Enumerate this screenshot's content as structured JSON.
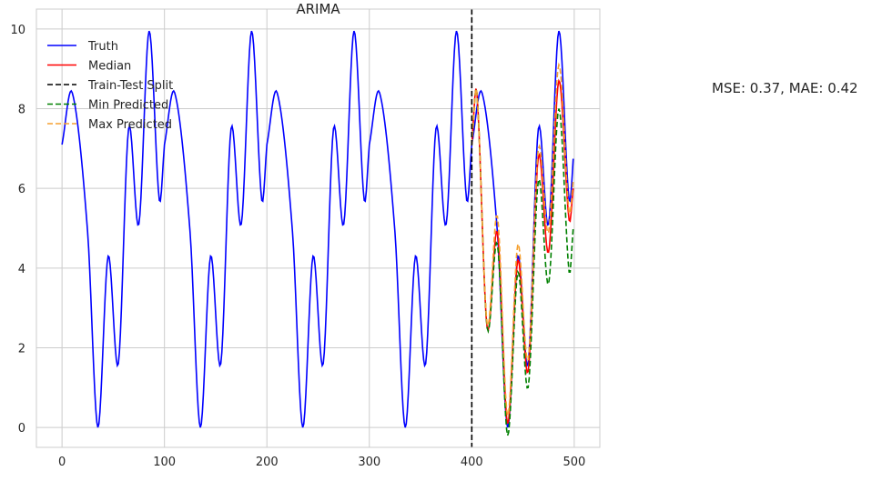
{
  "chart_data": {
    "type": "line",
    "title": "ARIMA",
    "xlabel": "",
    "ylabel": "",
    "xlim": [
      -25,
      525
    ],
    "ylim": [
      -0.5,
      10.5
    ],
    "xticks": [
      0,
      100,
      200,
      300,
      400,
      500
    ],
    "yticks": [
      0,
      2,
      4,
      6,
      8,
      10
    ],
    "grid": true,
    "legend_position": "top-left",
    "split_x": 400,
    "annotation": "MSE: 0.37, MAE: 0.42",
    "series": [
      {
        "name": "Truth",
        "color": "#0000ff",
        "style": "solid",
        "x": [
          0,
          10,
          25,
          35,
          45,
          55,
          65,
          75,
          85,
          95,
          100
        ],
        "y": [
          7.1,
          8.4,
          4.9,
          0.0,
          4.3,
          1.6,
          7.5,
          5.1,
          9.95,
          5.7,
          7.1
        ],
        "period": 100,
        "x_range": [
          0,
          499
        ]
      },
      {
        "name": "Median",
        "color": "#ff0000",
        "style": "solid",
        "x": [
          400,
          405,
          415,
          425,
          435,
          445,
          455,
          465,
          475,
          485,
          495,
          499
        ],
        "y": [
          7.1,
          8.4,
          2.5,
          4.9,
          0.1,
          4.2,
          1.4,
          6.8,
          4.4,
          8.7,
          5.2,
          6.0
        ]
      },
      {
        "name": "Train-Test Split",
        "color": "#000000",
        "style": "dashed"
      },
      {
        "name": "Min Predicted",
        "color": "#008000",
        "style": "dashed",
        "x": [
          400,
          405,
          415,
          425,
          435,
          445,
          455,
          465,
          475,
          485,
          495,
          499
        ],
        "y": [
          7.1,
          8.4,
          2.5,
          4.6,
          -0.2,
          3.9,
          1.0,
          6.2,
          3.6,
          8.0,
          3.9,
          5.0
        ]
      },
      {
        "name": "Max Predicted",
        "color": "#f5a030",
        "style": "dashed",
        "x": [
          400,
          405,
          415,
          425,
          435,
          445,
          455,
          465,
          475,
          485,
          495,
          499
        ],
        "y": [
          7.1,
          8.4,
          2.6,
          5.3,
          0.3,
          4.6,
          1.7,
          7.0,
          4.9,
          9.1,
          5.4,
          6.2
        ]
      }
    ]
  }
}
